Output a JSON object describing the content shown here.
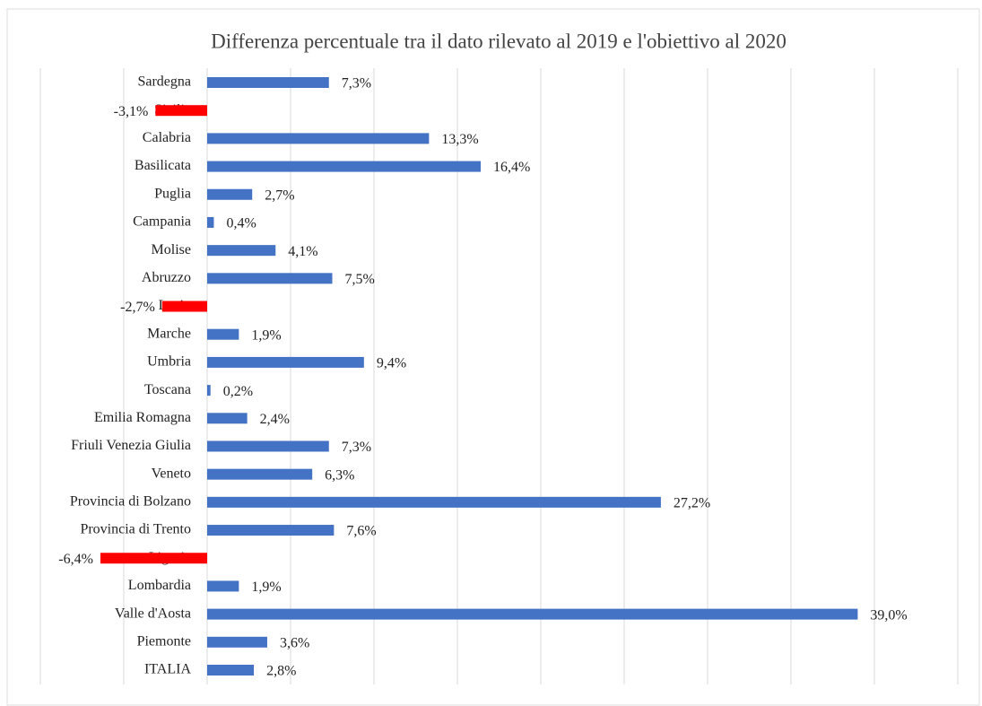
{
  "chart_data": {
    "type": "hbar",
    "title": "Differenza percentuale tra il dato rilevato al 2019 e l'obiettivo al 2020",
    "categories": [
      "Sardegna",
      "Sicilia",
      "Calabria",
      "Basilicata",
      "Puglia",
      "Campania",
      "Molise",
      "Abruzzo",
      "Lazio",
      "Marche",
      "Umbria",
      "Toscana",
      "Emilia Romagna",
      "Friuli Venezia Giulia",
      "Veneto",
      "Provincia di Bolzano",
      "Provincia di Trento",
      "Liguria",
      "Lombardia",
      "Valle d'Aosta",
      "Piemonte",
      "ITALIA"
    ],
    "values": [
      7.3,
      -3.1,
      13.3,
      16.4,
      2.7,
      0.4,
      4.1,
      7.5,
      -2.7,
      1.9,
      9.4,
      0.2,
      2.4,
      7.3,
      6.3,
      27.2,
      7.6,
      -6.4,
      1.9,
      39.0,
      3.6,
      2.8
    ],
    "value_labels": [
      "7,3%",
      "-3,1%",
      "13,3%",
      "16,4%",
      "2,7%",
      "0,4%",
      "4,1%",
      "7,5%",
      "-2,7%",
      "1,9%",
      "9,4%",
      "0,2%",
      "2,4%",
      "7,3%",
      "6,3%",
      "27,2%",
      "7,6%",
      "-6,4%",
      "1,9%",
      "39,0%",
      "3,6%",
      "2,8%"
    ],
    "color": "#4472c4",
    "negative_color": "#ff0000",
    "xlim": [
      -10,
      45
    ],
    "xticks": [
      -10,
      -5,
      0,
      5,
      10,
      15,
      20,
      25,
      30,
      35,
      40,
      45
    ],
    "grid": true
  }
}
